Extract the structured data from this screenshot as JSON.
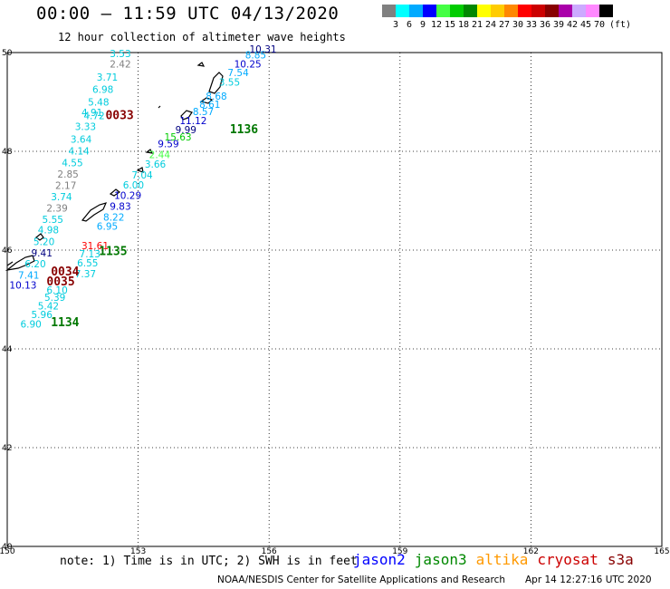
{
  "header": {
    "title": "00:00 – 11:59 UTC 04/13/2020",
    "subtitle": "12 hour collection of altimeter wave heights"
  },
  "colorbar": {
    "unit": "(ft)",
    "ticks": [
      "3",
      "6",
      "9",
      "12",
      "15",
      "18",
      "21",
      "24",
      "27",
      "30",
      "33",
      "36",
      "39",
      "42",
      "45",
      "70"
    ],
    "colors": [
      "#808080",
      "#00ffff",
      "#00aaff",
      "#0000ff",
      "#44ff44",
      "#00cc00",
      "#008800",
      "#ffff00",
      "#ffcc00",
      "#ff8800",
      "#ff0000",
      "#cc0000",
      "#880000",
      "#aa00aa",
      "#ccaaff",
      "#ff88ff",
      "#000000"
    ]
  },
  "chart_data": {
    "type": "scatter",
    "title": "00:00 – 11:59 UTC 04/13/2020",
    "subtitle": "12 hour collection of altimeter wave heights",
    "xlim": [
      150,
      165
    ],
    "ylim": [
      40,
      50
    ],
    "xticks": [
      150,
      153,
      156,
      159,
      162,
      165
    ],
    "yticks": [
      40,
      42,
      44,
      46,
      48,
      50
    ],
    "grid": "dotted",
    "points": [
      {
        "x": 152.35,
        "y": 49.91,
        "v": "3.53",
        "c": "#00ccdd"
      },
      {
        "x": 152.35,
        "y": 49.7,
        "v": "2.42",
        "c": "#808080"
      },
      {
        "x": 152.05,
        "y": 49.43,
        "v": "3.71",
        "c": "#00ccdd"
      },
      {
        "x": 151.95,
        "y": 49.18,
        "v": "6.98",
        "c": "#00ccdd"
      },
      {
        "x": 151.85,
        "y": 48.93,
        "v": "5.48",
        "c": "#00ccdd"
      },
      {
        "x": 151.7,
        "y": 48.72,
        "v": "4.91",
        "c": "#00ccdd"
      },
      {
        "x": 151.75,
        "y": 48.65,
        "v": "4.72",
        "c": "#00ccdd"
      },
      {
        "x": 151.55,
        "y": 48.43,
        "v": "3.33",
        "c": "#00ccdd"
      },
      {
        "x": 151.45,
        "y": 48.17,
        "v": "3.64",
        "c": "#00ccdd"
      },
      {
        "x": 151.4,
        "y": 47.94,
        "v": "4.14",
        "c": "#00ccdd"
      },
      {
        "x": 151.25,
        "y": 47.7,
        "v": "4.55",
        "c": "#00ccdd"
      },
      {
        "x": 151.15,
        "y": 47.47,
        "v": "2.85",
        "c": "#808080"
      },
      {
        "x": 151.1,
        "y": 47.24,
        "v": "2.17",
        "c": "#808080"
      },
      {
        "x": 151.0,
        "y": 47.01,
        "v": "3.74",
        "c": "#00ccdd"
      },
      {
        "x": 150.9,
        "y": 46.78,
        "v": "2.39",
        "c": "#808080"
      },
      {
        "x": 150.8,
        "y": 46.55,
        "v": "5.55",
        "c": "#00ccdd"
      },
      {
        "x": 150.7,
        "y": 46.34,
        "v": "4.98",
        "c": "#00ccdd"
      },
      {
        "x": 150.6,
        "y": 46.1,
        "v": "5.20",
        "c": "#00ccdd"
      },
      {
        "x": 150.55,
        "y": 45.87,
        "v": "9.41",
        "c": "#000080"
      },
      {
        "x": 150.4,
        "y": 45.65,
        "v": "6.20",
        "c": "#00ccdd"
      },
      {
        "x": 150.25,
        "y": 45.42,
        "v": "7.41",
        "c": "#00aaff"
      },
      {
        "x": 150.05,
        "y": 45.22,
        "v": "10.13",
        "c": "#0000cc"
      },
      {
        "x": 150.9,
        "y": 45.12,
        "v": "6.10",
        "c": "#00ccdd"
      },
      {
        "x": 150.85,
        "y": 44.97,
        "v": "5.39",
        "c": "#00ccdd"
      },
      {
        "x": 150.7,
        "y": 44.8,
        "v": "5.42",
        "c": "#00ccdd"
      },
      {
        "x": 150.55,
        "y": 44.62,
        "v": "5.96",
        "c": "#00ccdd"
      },
      {
        "x": 150.3,
        "y": 44.43,
        "v": "6.90",
        "c": "#00ccdd"
      },
      {
        "x": 151.65,
        "y": 45.85,
        "v": "7.13",
        "c": "#00ccdd"
      },
      {
        "x": 151.6,
        "y": 45.67,
        "v": "6.55",
        "c": "#00ccdd"
      },
      {
        "x": 151.55,
        "y": 45.45,
        "v": "7.37",
        "c": "#00ccdd"
      },
      {
        "x": 151.7,
        "y": 46.02,
        "v": "31.61",
        "c": "#ff0000"
      },
      {
        "x": 152.05,
        "y": 46.41,
        "v": "6.95",
        "c": "#00aaff"
      },
      {
        "x": 152.2,
        "y": 46.6,
        "v": "8.22",
        "c": "#00aaff"
      },
      {
        "x": 152.35,
        "y": 46.82,
        "v": "9.83",
        "c": "#0000cc"
      },
      {
        "x": 152.45,
        "y": 47.04,
        "v": "10.29",
        "c": "#0000cc"
      },
      {
        "x": 152.65,
        "y": 47.25,
        "v": "6.00",
        "c": "#00ccdd"
      },
      {
        "x": 152.85,
        "y": 47.45,
        "v": "7.04",
        "c": "#00ccdd"
      },
      {
        "x": 153.15,
        "y": 47.67,
        "v": "3.66",
        "c": "#00ccdd"
      },
      {
        "x": 153.25,
        "y": 47.86,
        "v": "2.44",
        "c": "#44ff44"
      },
      {
        "x": 153.45,
        "y": 48.08,
        "v": "9.59",
        "c": "#0000cc"
      },
      {
        "x": 153.6,
        "y": 48.22,
        "v": "15.63",
        "c": "#00cc00"
      },
      {
        "x": 153.85,
        "y": 48.37,
        "v": "9.99",
        "c": "#000080"
      },
      {
        "x": 153.95,
        "y": 48.55,
        "v": "11.12",
        "c": "#0000cc"
      },
      {
        "x": 154.25,
        "y": 48.73,
        "v": "8.57",
        "c": "#00aaff"
      },
      {
        "x": 154.4,
        "y": 48.88,
        "v": "8.61",
        "c": "#00aaff"
      },
      {
        "x": 154.55,
        "y": 49.05,
        "v": "8.68",
        "c": "#00aaff"
      },
      {
        "x": 154.85,
        "y": 49.33,
        "v": "3.55",
        "c": "#00ccdd"
      },
      {
        "x": 155.05,
        "y": 49.52,
        "v": "7.54",
        "c": "#00aaff"
      },
      {
        "x": 155.2,
        "y": 49.7,
        "v": "10.25",
        "c": "#0000cc"
      },
      {
        "x": 155.45,
        "y": 49.88,
        "v": "8.85",
        "c": "#00aaff"
      },
      {
        "x": 155.55,
        "y": 50.0,
        "v": "10.31",
        "c": "#000080"
      }
    ],
    "passes": [
      {
        "x": 152.25,
        "y": 48.65,
        "label": "0033",
        "c": "#880000"
      },
      {
        "x": 155.1,
        "y": 48.37,
        "label": "1136",
        "c": "#007700"
      },
      {
        "x": 152.1,
        "y": 45.9,
        "label": "1135",
        "c": "#007700"
      },
      {
        "x": 151.0,
        "y": 45.49,
        "label": "0034",
        "c": "#880000"
      },
      {
        "x": 150.9,
        "y": 45.28,
        "label": "0035",
        "c": "#880000"
      },
      {
        "x": 151.0,
        "y": 44.46,
        "label": "1134",
        "c": "#007700"
      }
    ]
  },
  "legend": {
    "missions": [
      {
        "name": "jason2",
        "color": "#0000ff"
      },
      {
        "name": "jason3",
        "color": "#008800"
      },
      {
        "name": "altika",
        "color": "#ff9900"
      },
      {
        "name": "cryosat",
        "color": "#cc0000"
      },
      {
        "name": "s3a",
        "color": "#880000"
      }
    ]
  },
  "footer": {
    "note": "note:  1) Time is in UTC;  2) SWH is in feet",
    "credit": "NOAA/NESDIS Center for Satellite Applications and Research",
    "timestamp": "Apr 14 12:27:16 UTC 2020"
  }
}
